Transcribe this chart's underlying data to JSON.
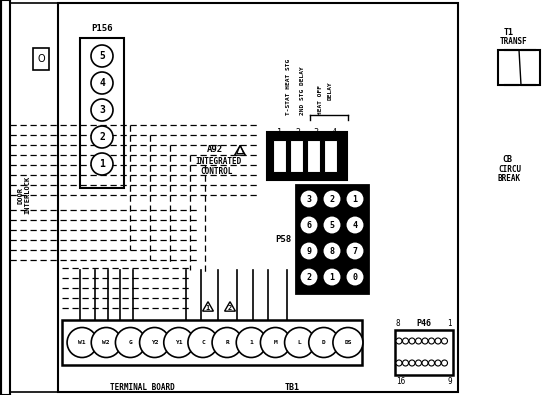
{
  "bg_color": "#ffffff",
  "fig_w": 5.54,
  "fig_h": 3.95,
  "dpi": 100,
  "p156_pins": [
    "5",
    "4",
    "3",
    "2",
    "1"
  ],
  "p58_pins": [
    [
      "3",
      "2",
      "1"
    ],
    [
      "6",
      "5",
      "4"
    ],
    [
      "9",
      "8",
      "7"
    ],
    [
      "2",
      "1",
      "0"
    ]
  ],
  "terminal_labels": [
    "W1",
    "W2",
    "G",
    "Y2",
    "Y1",
    "C",
    "R",
    "1",
    "M",
    "L",
    "D",
    "DS"
  ],
  "p46_top_labels": [
    "8",
    "P46",
    "1"
  ],
  "p46_bot_labels": [
    "16",
    "9"
  ]
}
